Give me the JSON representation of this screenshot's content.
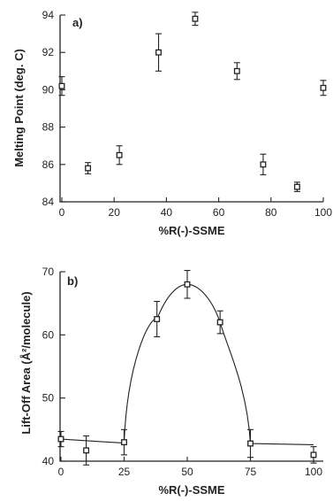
{
  "chart_data": [
    {
      "type": "scatter",
      "panel_label": "a)",
      "xlabel": "%R(-)-SSME",
      "ylabel": "Melting Point (deg. C)",
      "xlim": [
        0,
        100
      ],
      "ylim": [
        84,
        94
      ],
      "xticks": [
        0,
        20,
        40,
        60,
        80,
        100
      ],
      "xtick_labels": [
        "0",
        "20",
        "40",
        "60",
        "80",
        "100"
      ],
      "yticks": [
        84,
        86,
        88,
        90,
        92,
        94
      ],
      "ytick_labels": [
        "84",
        "86",
        "88",
        "90",
        "92",
        "94"
      ],
      "marker": "open-square",
      "error_bars": true,
      "fit_line": false,
      "series": [
        {
          "x": [
            0,
            10,
            22,
            37,
            51,
            67,
            77,
            90,
            100
          ],
          "y": [
            90.2,
            85.8,
            86.5,
            92.0,
            93.8,
            91.0,
            86.0,
            84.8,
            90.1
          ],
          "err": [
            0.5,
            0.3,
            0.5,
            1.0,
            0.35,
            0.45,
            0.55,
            0.25,
            0.4
          ]
        }
      ]
    },
    {
      "type": "scatter",
      "panel_label": "b)",
      "xlabel": "%R(-)-SSME",
      "ylabel": "Lift-Off Area (Å²/molecule)",
      "xlim": [
        0,
        100
      ],
      "ylim": [
        40,
        70
      ],
      "xticks": [
        0,
        25,
        50,
        75,
        100
      ],
      "xtick_labels": [
        "0",
        "25",
        "50",
        "75",
        "100"
      ],
      "yticks": [
        40,
        50,
        60,
        70
      ],
      "ytick_labels": [
        "40",
        "50",
        "60",
        "70"
      ],
      "marker": "open-square",
      "error_bars": true,
      "fit_line": true,
      "series": [
        {
          "x": [
            0,
            10,
            25,
            38,
            50,
            63,
            75,
            100
          ],
          "y": [
            43.5,
            41.7,
            43.0,
            62.5,
            68.0,
            62.0,
            42.8,
            41.0
          ],
          "err": [
            1.2,
            2.3,
            2.0,
            2.8,
            2.2,
            1.8,
            2.2,
            1.3
          ]
        }
      ]
    }
  ]
}
